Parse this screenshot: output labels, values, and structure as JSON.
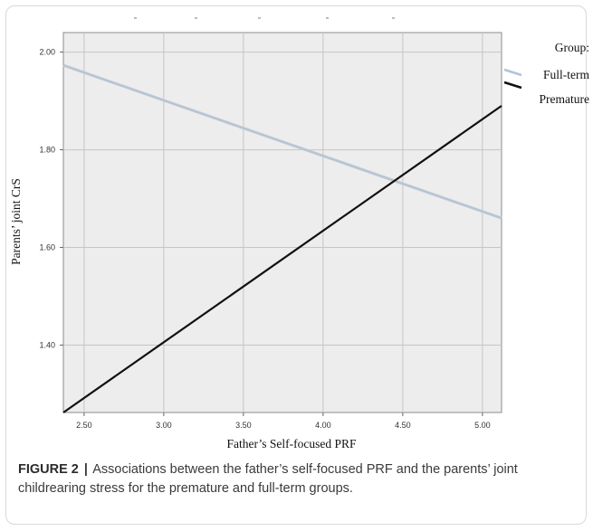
{
  "chart_data": {
    "type": "line",
    "xlabel": "Father’s Self-focused PRF",
    "ylabel": "Parents’ joint CrS",
    "xlim": [
      2.37,
      5.12
    ],
    "ylim": [
      1.262,
      2.04
    ],
    "xticks": [
      "2.50",
      "3.00",
      "3.50",
      "4.00",
      "4.50",
      "5.00"
    ],
    "yticks": [
      "1.40",
      "1.60",
      "1.80",
      "2.00"
    ],
    "grid": true,
    "legend": {
      "title": "Group:",
      "placement": "right",
      "entries": [
        "Full-term",
        "Premature"
      ]
    },
    "series": [
      {
        "name": "Full-term",
        "color": "#b0c4d8",
        "points": [
          [
            2.37,
            1.973
          ],
          [
            5.12,
            1.66
          ]
        ]
      },
      {
        "name": "Premature",
        "color": "#111111",
        "points": [
          [
            2.37,
            1.262
          ],
          [
            5.12,
            1.89
          ]
        ]
      }
    ]
  },
  "caption": {
    "label": "FIGURE 2",
    "separator": "|",
    "text": "Associations between the father’s self-focused PRF and the parents’ joint childrearing stress for the premature and full-term groups."
  }
}
